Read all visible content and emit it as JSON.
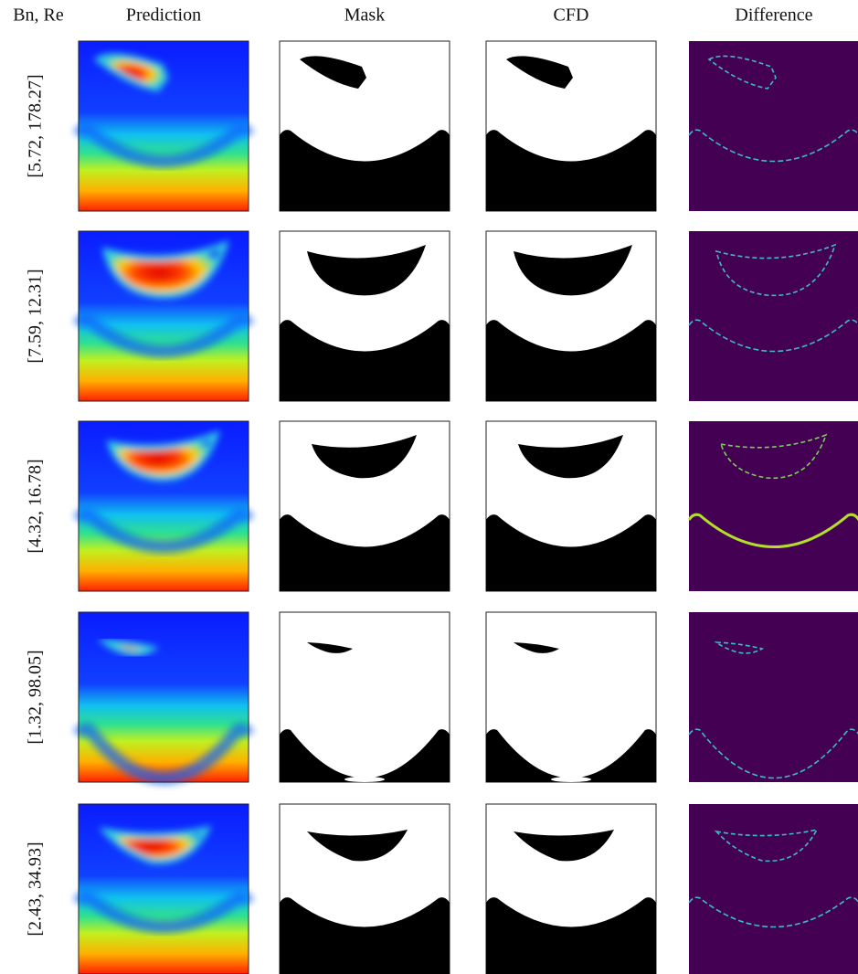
{
  "header": {
    "corner": "Bn, Re",
    "columns": [
      "Prediction",
      "Mask",
      "CFD",
      "Difference"
    ]
  },
  "rows": [
    {
      "label": "[5.72, 178.27]"
    },
    {
      "label": "[7.59, 12.31]"
    },
    {
      "label": "[4.32, 16.78]"
    },
    {
      "label": "[1.32, 98.05]"
    },
    {
      "label": "[2.43, 34.93]"
    }
  ]
}
